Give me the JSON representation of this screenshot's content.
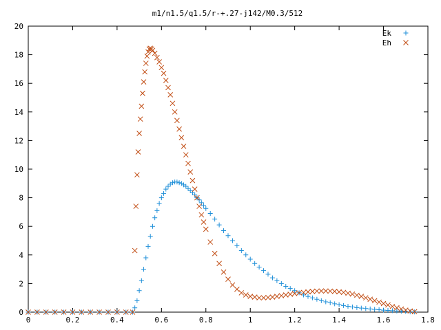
{
  "chart_data": {
    "type": "scatter",
    "title": "m1/n1.5/q1.5/r-+.27-j142/M0.3/512",
    "xlim": [
      0,
      1.8
    ],
    "ylim": [
      0,
      20
    ],
    "xticks": [
      "0",
      "0.2",
      "0.4",
      "0.6",
      "0.8",
      "1",
      "1.2",
      "1.4",
      "1.6",
      "1.8"
    ],
    "yticks": [
      "0",
      "2",
      "4",
      "6",
      "8",
      "10",
      "12",
      "14",
      "16",
      "18",
      "20"
    ],
    "xtick_values": [
      0,
      0.2,
      0.4,
      0.6,
      0.8,
      1.0,
      1.2,
      1.4,
      1.6,
      1.8
    ],
    "ytick_values": [
      0,
      2,
      4,
      6,
      8,
      10,
      12,
      14,
      16,
      18,
      20
    ],
    "grid": false,
    "legend_position": "top-right",
    "series": [
      {
        "name": "Ek",
        "marker": "plus",
        "color": "#1f8fd8",
        "points": [
          [
            0.0,
            0
          ],
          [
            0.04,
            0
          ],
          [
            0.08,
            0
          ],
          [
            0.12,
            0
          ],
          [
            0.16,
            0
          ],
          [
            0.2,
            0
          ],
          [
            0.24,
            0
          ],
          [
            0.28,
            0
          ],
          [
            0.32,
            0
          ],
          [
            0.36,
            0
          ],
          [
            0.4,
            0
          ],
          [
            0.44,
            0
          ],
          [
            0.47,
            0
          ],
          [
            0.48,
            0.3
          ],
          [
            0.49,
            0.8
          ],
          [
            0.5,
            1.5
          ],
          [
            0.51,
            2.2
          ],
          [
            0.52,
            3.0
          ],
          [
            0.53,
            3.8
          ],
          [
            0.54,
            4.6
          ],
          [
            0.55,
            5.3
          ],
          [
            0.56,
            6.0
          ],
          [
            0.57,
            6.6
          ],
          [
            0.58,
            7.1
          ],
          [
            0.59,
            7.6
          ],
          [
            0.6,
            8.0
          ],
          [
            0.61,
            8.3
          ],
          [
            0.62,
            8.6
          ],
          [
            0.63,
            8.8
          ],
          [
            0.64,
            8.95
          ],
          [
            0.65,
            9.05
          ],
          [
            0.66,
            9.1
          ],
          [
            0.67,
            9.1
          ],
          [
            0.68,
            9.05
          ],
          [
            0.69,
            9.0
          ],
          [
            0.7,
            8.9
          ],
          [
            0.71,
            8.8
          ],
          [
            0.72,
            8.65
          ],
          [
            0.73,
            8.5
          ],
          [
            0.74,
            8.35
          ],
          [
            0.75,
            8.2
          ],
          [
            0.76,
            8.0
          ],
          [
            0.77,
            7.85
          ],
          [
            0.78,
            7.65
          ],
          [
            0.79,
            7.45
          ],
          [
            0.8,
            7.25
          ],
          [
            0.82,
            6.9
          ],
          [
            0.84,
            6.5
          ],
          [
            0.86,
            6.1
          ],
          [
            0.88,
            5.7
          ],
          [
            0.9,
            5.35
          ],
          [
            0.92,
            5.0
          ],
          [
            0.94,
            4.65
          ],
          [
            0.96,
            4.3
          ],
          [
            0.98,
            4.0
          ],
          [
            1.0,
            3.7
          ],
          [
            1.02,
            3.4
          ],
          [
            1.04,
            3.15
          ],
          [
            1.06,
            2.9
          ],
          [
            1.08,
            2.65
          ],
          [
            1.1,
            2.4
          ],
          [
            1.12,
            2.2
          ],
          [
            1.14,
            2.0
          ],
          [
            1.16,
            1.8
          ],
          [
            1.18,
            1.65
          ],
          [
            1.2,
            1.5
          ],
          [
            1.22,
            1.35
          ],
          [
            1.24,
            1.2
          ],
          [
            1.26,
            1.1
          ],
          [
            1.28,
            1.0
          ],
          [
            1.3,
            0.9
          ],
          [
            1.32,
            0.8
          ],
          [
            1.34,
            0.72
          ],
          [
            1.36,
            0.65
          ],
          [
            1.38,
            0.58
          ],
          [
            1.4,
            0.52
          ],
          [
            1.42,
            0.46
          ],
          [
            1.44,
            0.41
          ],
          [
            1.46,
            0.36
          ],
          [
            1.48,
            0.32
          ],
          [
            1.5,
            0.28
          ],
          [
            1.52,
            0.25
          ],
          [
            1.54,
            0.22
          ],
          [
            1.56,
            0.19
          ],
          [
            1.58,
            0.17
          ],
          [
            1.6,
            0.14
          ],
          [
            1.62,
            0.12
          ],
          [
            1.64,
            0.1
          ],
          [
            1.66,
            0.08
          ],
          [
            1.68,
            0.06
          ],
          [
            1.7,
            0.04
          ],
          [
            1.72,
            0.02
          ],
          [
            1.74,
            0.01
          ]
        ]
      },
      {
        "name": "Eh",
        "marker": "cross",
        "color": "#c04a10",
        "points": [
          [
            0.0,
            0
          ],
          [
            0.04,
            0
          ],
          [
            0.08,
            0
          ],
          [
            0.12,
            0
          ],
          [
            0.16,
            0
          ],
          [
            0.2,
            0
          ],
          [
            0.24,
            0
          ],
          [
            0.28,
            0
          ],
          [
            0.32,
            0
          ],
          [
            0.36,
            0
          ],
          [
            0.4,
            0
          ],
          [
            0.44,
            0
          ],
          [
            0.47,
            0
          ],
          [
            0.48,
            4.3
          ],
          [
            0.485,
            7.4
          ],
          [
            0.49,
            9.6
          ],
          [
            0.495,
            11.2
          ],
          [
            0.5,
            12.5
          ],
          [
            0.505,
            13.5
          ],
          [
            0.51,
            14.4
          ],
          [
            0.515,
            15.3
          ],
          [
            0.52,
            16.1
          ],
          [
            0.525,
            16.8
          ],
          [
            0.53,
            17.4
          ],
          [
            0.535,
            17.9
          ],
          [
            0.54,
            18.2
          ],
          [
            0.545,
            18.4
          ],
          [
            0.55,
            18.45
          ],
          [
            0.555,
            18.4
          ],
          [
            0.56,
            18.3
          ],
          [
            0.57,
            18.1
          ],
          [
            0.58,
            17.8
          ],
          [
            0.59,
            17.5
          ],
          [
            0.6,
            17.1
          ],
          [
            0.61,
            16.7
          ],
          [
            0.62,
            16.2
          ],
          [
            0.63,
            15.7
          ],
          [
            0.64,
            15.2
          ],
          [
            0.65,
            14.6
          ],
          [
            0.66,
            14.0
          ],
          [
            0.67,
            13.4
          ],
          [
            0.68,
            12.8
          ],
          [
            0.69,
            12.2
          ],
          [
            0.7,
            11.6
          ],
          [
            0.71,
            11.0
          ],
          [
            0.72,
            10.4
          ],
          [
            0.73,
            9.8
          ],
          [
            0.74,
            9.2
          ],
          [
            0.75,
            8.6
          ],
          [
            0.76,
            8.0
          ],
          [
            0.77,
            7.4
          ],
          [
            0.78,
            6.8
          ],
          [
            0.79,
            6.3
          ],
          [
            0.8,
            5.8
          ],
          [
            0.82,
            4.9
          ],
          [
            0.84,
            4.1
          ],
          [
            0.86,
            3.4
          ],
          [
            0.88,
            2.8
          ],
          [
            0.9,
            2.3
          ],
          [
            0.92,
            1.9
          ],
          [
            0.94,
            1.6
          ],
          [
            0.96,
            1.35
          ],
          [
            0.98,
            1.2
          ],
          [
            1.0,
            1.1
          ],
          [
            1.02,
            1.05
          ],
          [
            1.04,
            1.0
          ],
          [
            1.06,
            1.0
          ],
          [
            1.08,
            1.02
          ],
          [
            1.1,
            1.05
          ],
          [
            1.12,
            1.1
          ],
          [
            1.14,
            1.15
          ],
          [
            1.16,
            1.2
          ],
          [
            1.18,
            1.25
          ],
          [
            1.2,
            1.3
          ],
          [
            1.22,
            1.35
          ],
          [
            1.24,
            1.38
          ],
          [
            1.26,
            1.42
          ],
          [
            1.28,
            1.45
          ],
          [
            1.3,
            1.47
          ],
          [
            1.32,
            1.48
          ],
          [
            1.34,
            1.48
          ],
          [
            1.36,
            1.47
          ],
          [
            1.38,
            1.45
          ],
          [
            1.4,
            1.42
          ],
          [
            1.42,
            1.38
          ],
          [
            1.44,
            1.32
          ],
          [
            1.46,
            1.26
          ],
          [
            1.48,
            1.18
          ],
          [
            1.5,
            1.1
          ],
          [
            1.52,
            1.0
          ],
          [
            1.54,
            0.9
          ],
          [
            1.56,
            0.8
          ],
          [
            1.58,
            0.7
          ],
          [
            1.6,
            0.6
          ],
          [
            1.62,
            0.5
          ],
          [
            1.64,
            0.4
          ],
          [
            1.66,
            0.3
          ],
          [
            1.68,
            0.22
          ],
          [
            1.7,
            0.14
          ],
          [
            1.72,
            0.08
          ],
          [
            1.74,
            0.03
          ]
        ]
      }
    ]
  }
}
